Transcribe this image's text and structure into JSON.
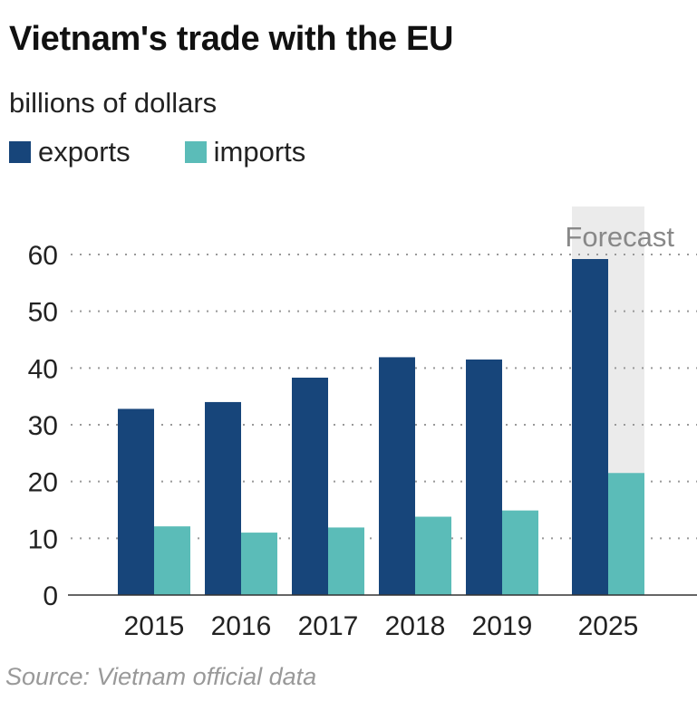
{
  "chart_data": {
    "type": "bar",
    "title": "Vietnam's trade with the EU",
    "subtitle": "billions of dollars",
    "categories": [
      "2015",
      "2016",
      "2017",
      "2018",
      "2019",
      "2025"
    ],
    "series": [
      {
        "name": "exports",
        "color": "#17457a",
        "values": [
          32.8,
          34.0,
          38.3,
          41.9,
          41.5,
          59.2
        ]
      },
      {
        "name": "imports",
        "color": "#5bbcb8",
        "values": [
          12.1,
          11.0,
          11.9,
          13.8,
          14.9,
          21.5
        ]
      }
    ],
    "ylim": [
      0,
      60
    ],
    "yticks": [
      "0",
      "10",
      "20",
      "30",
      "40",
      "50",
      "60"
    ],
    "grid": true,
    "legend": "top-left",
    "annotation": "Forecast",
    "forecast_category": "2025",
    "source": "Source: Vietnam official data"
  }
}
